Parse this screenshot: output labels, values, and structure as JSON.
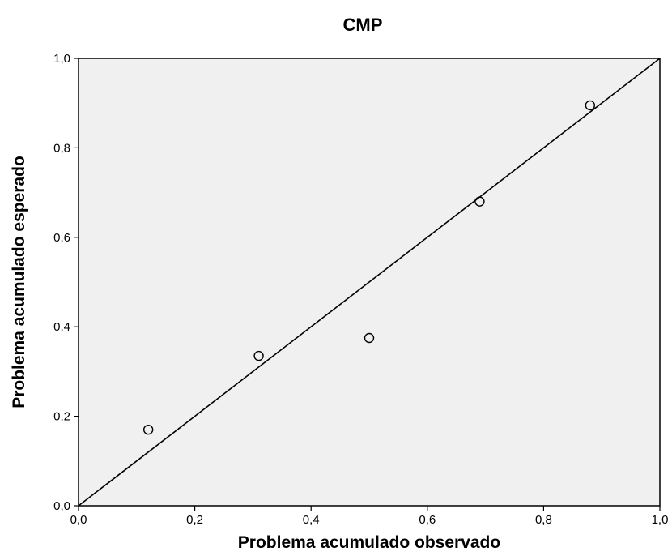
{
  "chart_data": {
    "type": "scatter",
    "title": "CMP",
    "xlabel": "Problema acumulado observado",
    "ylabel": "Problema acumulado esperado",
    "xlim": [
      0.0,
      1.0
    ],
    "ylim": [
      0.0,
      1.0
    ],
    "grid": false,
    "background_color": "#f0f0f0",
    "point_color": "#000000",
    "x_ticks": [
      "0,0",
      "0,2",
      "0,4",
      "0,6",
      "0,8",
      "1,0"
    ],
    "y_ticks": [
      "0,0",
      "0,2",
      "0,4",
      "0,6",
      "0,8",
      "1,0"
    ],
    "x_tick_values": [
      0.0,
      0.2,
      0.4,
      0.6,
      0.8,
      1.0
    ],
    "y_tick_values": [
      0.0,
      0.2,
      0.4,
      0.6,
      0.8,
      1.0
    ],
    "reference_line": {
      "from": [
        0.0,
        0.0
      ],
      "to": [
        1.0,
        1.0
      ]
    },
    "points": [
      {
        "x": 0.12,
        "y": 0.17
      },
      {
        "x": 0.31,
        "y": 0.335
      },
      {
        "x": 0.5,
        "y": 0.375
      },
      {
        "x": 0.69,
        "y": 0.68
      },
      {
        "x": 0.88,
        "y": 0.895
      }
    ]
  }
}
